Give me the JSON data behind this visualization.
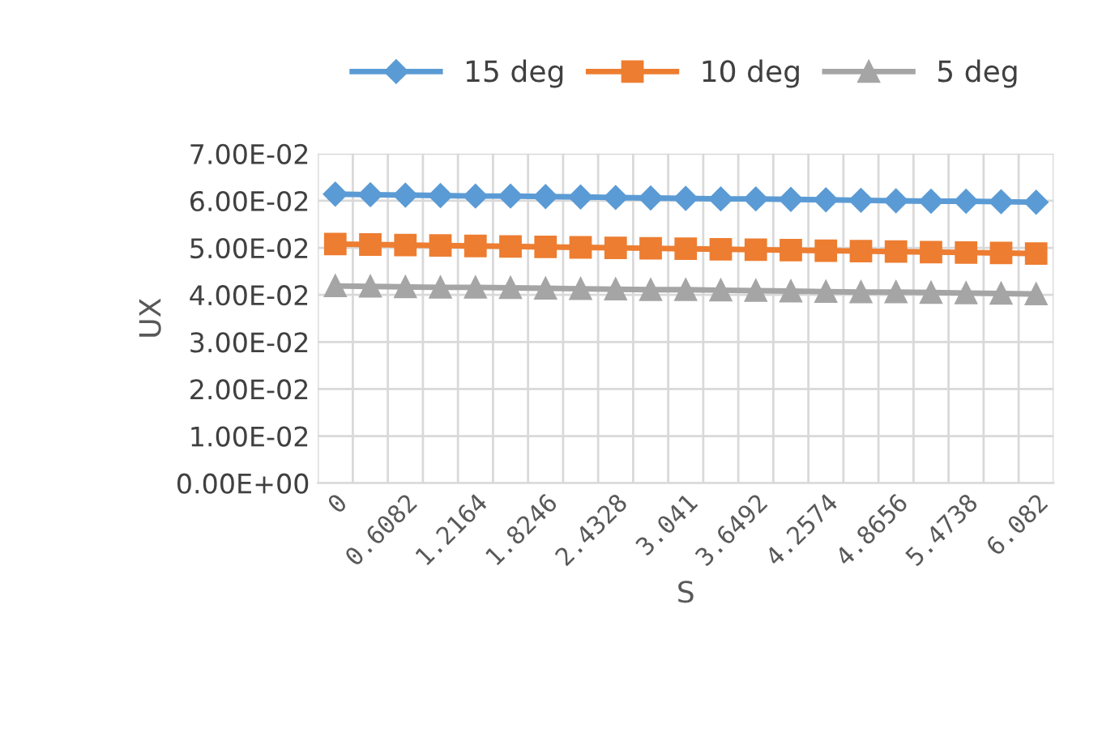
{
  "chart_data": {
    "type": "line",
    "xlabel": "S",
    "ylabel": "UX",
    "categories": [
      "0",
      null,
      "0.6082",
      null,
      "1.2164",
      null,
      "1.8246",
      null,
      "2.4328",
      null,
      "3.041",
      null,
      "3.6492",
      null,
      "4.2574",
      null,
      "4.8656",
      null,
      "5.4738",
      null,
      "6.082"
    ],
    "series": [
      {
        "name": "15 deg",
        "color": "#5b9bd5",
        "marker": "diamond",
        "values": [
          0.0614,
          0.0613,
          0.0612,
          0.0611,
          0.061,
          0.061,
          0.0609,
          0.0608,
          0.0607,
          0.0606,
          0.0605,
          0.0604,
          0.0604,
          0.0603,
          0.0602,
          0.0601,
          0.06,
          0.0599,
          0.0599,
          0.0598,
          0.0597
        ]
      },
      {
        "name": "10 deg",
        "color": "#ed7d31",
        "marker": "square",
        "values": [
          0.0508,
          0.0507,
          0.0506,
          0.0505,
          0.0504,
          0.0503,
          0.0502,
          0.0501,
          0.05,
          0.0499,
          0.0498,
          0.0497,
          0.0496,
          0.0495,
          0.0494,
          0.0493,
          0.0492,
          0.0491,
          0.049,
          0.0489,
          0.0488
        ]
      },
      {
        "name": "5 deg",
        "color": "#a5a5a5",
        "marker": "triangle",
        "values": [
          0.0419,
          0.0418,
          0.0417,
          0.0416,
          0.0416,
          0.0415,
          0.0414,
          0.0413,
          0.0412,
          0.0411,
          0.0411,
          0.041,
          0.0409,
          0.0408,
          0.0407,
          0.0406,
          0.0406,
          0.0405,
          0.0404,
          0.0403,
          0.0402
        ]
      }
    ],
    "ylim": [
      0,
      0.07
    ],
    "yticks": [
      {
        "value": 0,
        "label": "0.00E+00"
      },
      {
        "value": 0.01,
        "label": "1.00E-02"
      },
      {
        "value": 0.02,
        "label": "2.00E-02"
      },
      {
        "value": 0.03,
        "label": "3.00E-02"
      },
      {
        "value": 0.04,
        "label": "4.00E-02"
      },
      {
        "value": 0.05,
        "label": "5.00E-02"
      },
      {
        "value": 0.06,
        "label": "6.00E-02"
      },
      {
        "value": 0.07,
        "label": "7.00E-02"
      }
    ],
    "grid": true,
    "legend": "top"
  }
}
